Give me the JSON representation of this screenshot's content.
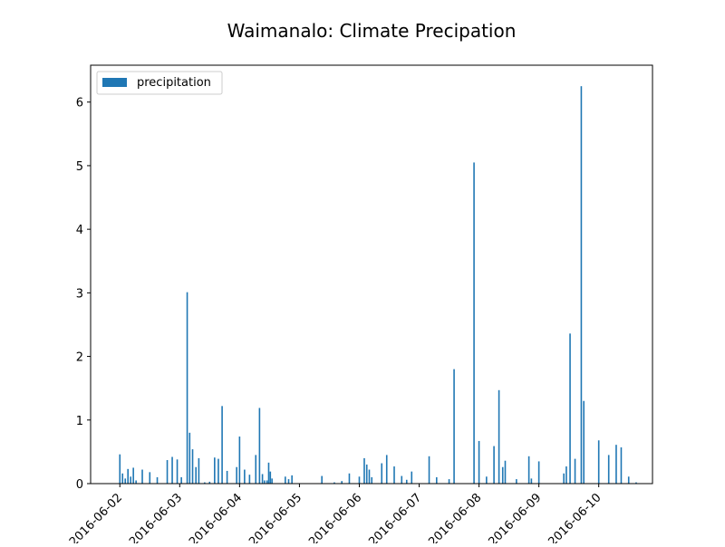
{
  "chart_data": {
    "type": "bar",
    "title": "Waimanalo: Climate Precipation",
    "xlabel": "",
    "ylabel": "",
    "ylim": [
      0,
      6.58
    ],
    "xlim": [
      "2016-06-01T12:17",
      "2016-06-10T21:33"
    ],
    "grid": false,
    "legend_position": "top-left",
    "bar_color": "#1f77b4",
    "x_ticks": [
      "2016-06-02",
      "2016-06-03",
      "2016-06-04",
      "2016-06-05",
      "2016-06-06",
      "2016-06-07",
      "2016-06-08",
      "2016-06-09",
      "2016-06-10"
    ],
    "y_ticks": [
      0,
      1,
      2,
      3,
      4,
      5,
      6
    ],
    "series": [
      {
        "name": "precipitation",
        "x": [
          "2016-06-02T00:00",
          "2016-06-02T01:05",
          "2016-06-02T02:10",
          "2016-06-02T03:15",
          "2016-06-02T04:20",
          "2016-06-02T05:25",
          "2016-06-02T06:30",
          "2016-06-02T09:00",
          "2016-06-02T12:00",
          "2016-06-02T15:00",
          "2016-06-02T19:00",
          "2016-06-02T21:00",
          "2016-06-02T23:00",
          "2016-06-03T00:40",
          "2016-06-03T03:00",
          "2016-06-03T04:00",
          "2016-06-03T05:10",
          "2016-06-03T06:30",
          "2016-06-03T07:40",
          "2016-06-03T10:00",
          "2016-06-03T12:00",
          "2016-06-03T14:00",
          "2016-06-03T15:30",
          "2016-06-03T17:00",
          "2016-06-03T19:00",
          "2016-06-03T22:50",
          "2016-06-04T00:00",
          "2016-06-04T02:00",
          "2016-06-04T04:00",
          "2016-06-04T06:30",
          "2016-06-04T08:00",
          "2016-06-04T09:10",
          "2016-06-04T10:00",
          "2016-06-04T11:00",
          "2016-06-04T11:40",
          "2016-06-04T12:20",
          "2016-06-04T13:00",
          "2016-06-04T18:20",
          "2016-06-04T19:40",
          "2016-06-04T21:00",
          "2016-06-05T09:00",
          "2016-06-05T14:00",
          "2016-06-05T17:00",
          "2016-06-05T20:00",
          "2016-06-06T00:00",
          "2016-06-06T02:00",
          "2016-06-06T03:00",
          "2016-06-06T04:00",
          "2016-06-06T05:00",
          "2016-06-06T09:00",
          "2016-06-06T11:00",
          "2016-06-06T14:00",
          "2016-06-06T17:00",
          "2016-06-06T19:00",
          "2016-06-06T21:00",
          "2016-06-07T04:00",
          "2016-06-07T07:00",
          "2016-06-07T12:00",
          "2016-06-07T14:00",
          "2016-06-07T22:00",
          "2016-06-08T00:00",
          "2016-06-08T03:00",
          "2016-06-08T06:00",
          "2016-06-08T08:00",
          "2016-06-08T09:30",
          "2016-06-08T10:30",
          "2016-06-08T15:00",
          "2016-06-08T20:00",
          "2016-06-08T21:00",
          "2016-06-09T00:00",
          "2016-06-09T10:00",
          "2016-06-09T11:00",
          "2016-06-09T12:30",
          "2016-06-09T14:30",
          "2016-06-09T17:00",
          "2016-06-09T18:00",
          "2016-06-10T00:00",
          "2016-06-10T04:00",
          "2016-06-10T07:00",
          "2016-06-10T09:00",
          "2016-06-10T12:00",
          "2016-06-10T15:00"
        ],
        "values": [
          0.46,
          0.16,
          0.08,
          0.23,
          0.11,
          0.25,
          0.05,
          0.22,
          0.18,
          0.1,
          0.37,
          0.42,
          0.38,
          0.1,
          3.01,
          0.8,
          0.54,
          0.26,
          0.4,
          0.02,
          0.03,
          0.41,
          0.39,
          1.22,
          0.2,
          0.26,
          0.74,
          0.22,
          0.14,
          0.45,
          1.19,
          0.15,
          0.05,
          0.05,
          0.33,
          0.19,
          0.08,
          0.11,
          0.07,
          0.13,
          0.12,
          0.02,
          0.04,
          0.16,
          0.11,
          0.4,
          0.3,
          0.22,
          0.1,
          0.32,
          0.45,
          0.27,
          0.12,
          0.06,
          0.19,
          0.43,
          0.1,
          0.07,
          1.8,
          5.05,
          0.67,
          0.11,
          0.59,
          1.47,
          0.26,
          0.36,
          0.07,
          0.43,
          0.08,
          0.35,
          0.16,
          0.27,
          2.36,
          0.39,
          6.25,
          1.3,
          0.68,
          0.45,
          0.61,
          0.57,
          0.11,
          0.02
        ]
      }
    ]
  }
}
